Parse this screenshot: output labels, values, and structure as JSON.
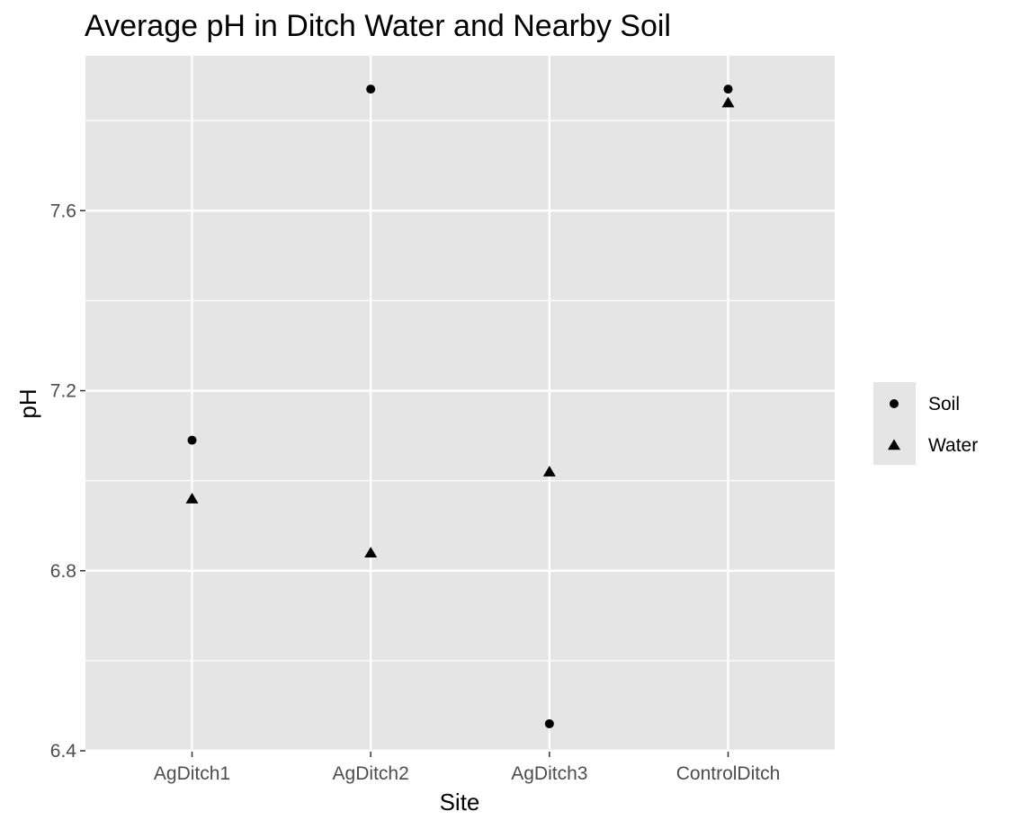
{
  "chart_data": {
    "type": "scatter",
    "title": "Average pH in Ditch Water and Nearby Soil",
    "xlabel": "Site",
    "ylabel": "pH",
    "categories": [
      "AgDitch1",
      "AgDitch2",
      "AgDitch3",
      "ControlDitch"
    ],
    "ylim": [
      6.4,
      8.0
    ],
    "yticks": [
      "6.4",
      "6.8",
      "7.2",
      "7.6"
    ],
    "grid": true,
    "legend_position": "right",
    "series": [
      {
        "name": "Soil",
        "shape": "circle",
        "values": [
          7.09,
          7.87,
          6.46,
          7.87
        ]
      },
      {
        "name": "Water",
        "shape": "triangle",
        "values": [
          6.96,
          6.84,
          7.02,
          7.84
        ]
      }
    ],
    "colors": {
      "panel": "#e5e5e5",
      "grid": "#ffffff",
      "point": "#000000"
    }
  }
}
